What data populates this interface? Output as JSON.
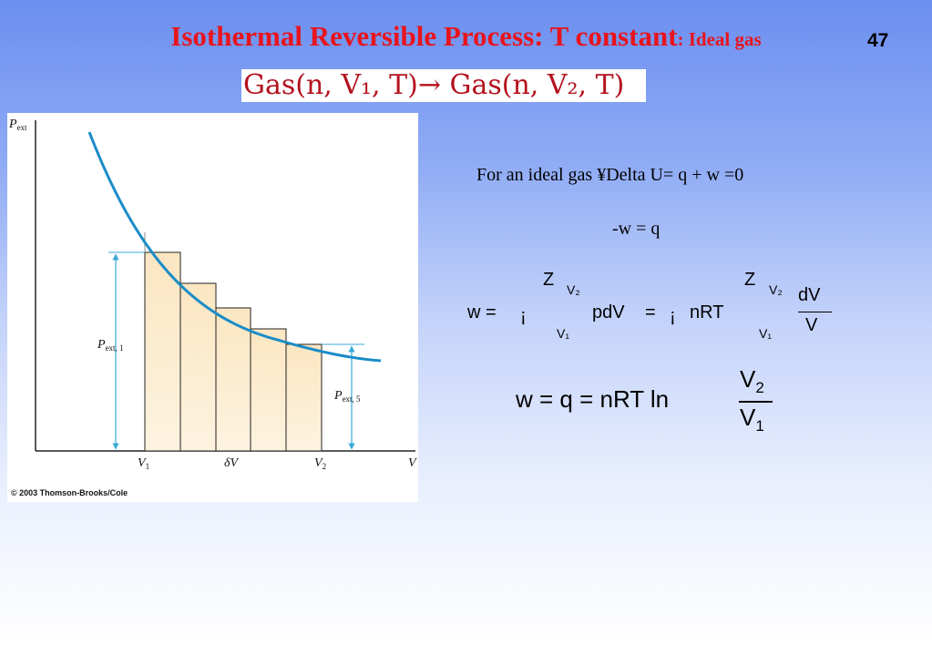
{
  "slide": {
    "title": "Isothermal Reversible Process: T constant",
    "title_suffix": ": Ideal gas",
    "page_number": "47",
    "reaction": "Gas(n, V₁, T)→ Gas(n, V₂, T)"
  },
  "figure": {
    "copyright": "© 2003 Thomson-Brooks/Cole",
    "y_axis_label": "P",
    "y_axis_sub": "ext",
    "x_axis_label": "V",
    "x_ticks": [
      {
        "main": "V",
        "sub": "1"
      },
      {
        "main": "δV",
        "sub": ""
      },
      {
        "main": "V",
        "sub": "2"
      }
    ],
    "p_ext_1": {
      "main": "P",
      "sub": "ext, 1"
    },
    "p_ext_5": {
      "main": "P",
      "sub": "ext, 5"
    }
  },
  "equations": {
    "line1": "For an ideal gas ¥Delta U= q + w =0",
    "line2": "-w =  q",
    "work_integral": {
      "lhs": "w =",
      "neg1": "¡",
      "integral_sign": "Z",
      "upper": "V₂",
      "lower": "V₁",
      "integrand": "pdV",
      "eq": "=",
      "neg2": "¡",
      "nrt": "nRT",
      "frac_num": "dV",
      "frac_den": "V"
    },
    "final": {
      "lhs": "w =  q =  nRT ln",
      "num": "V",
      "num_sub": "2",
      "den": "V",
      "den_sub": "1"
    }
  },
  "colors": {
    "title": "#e8141c",
    "reaction_text": "#b4121e",
    "curve": "#1a8cc8",
    "bars_fill": "#fbe3b8",
    "bars_stroke": "#222222",
    "arrows": "#3aa9d8"
  }
}
